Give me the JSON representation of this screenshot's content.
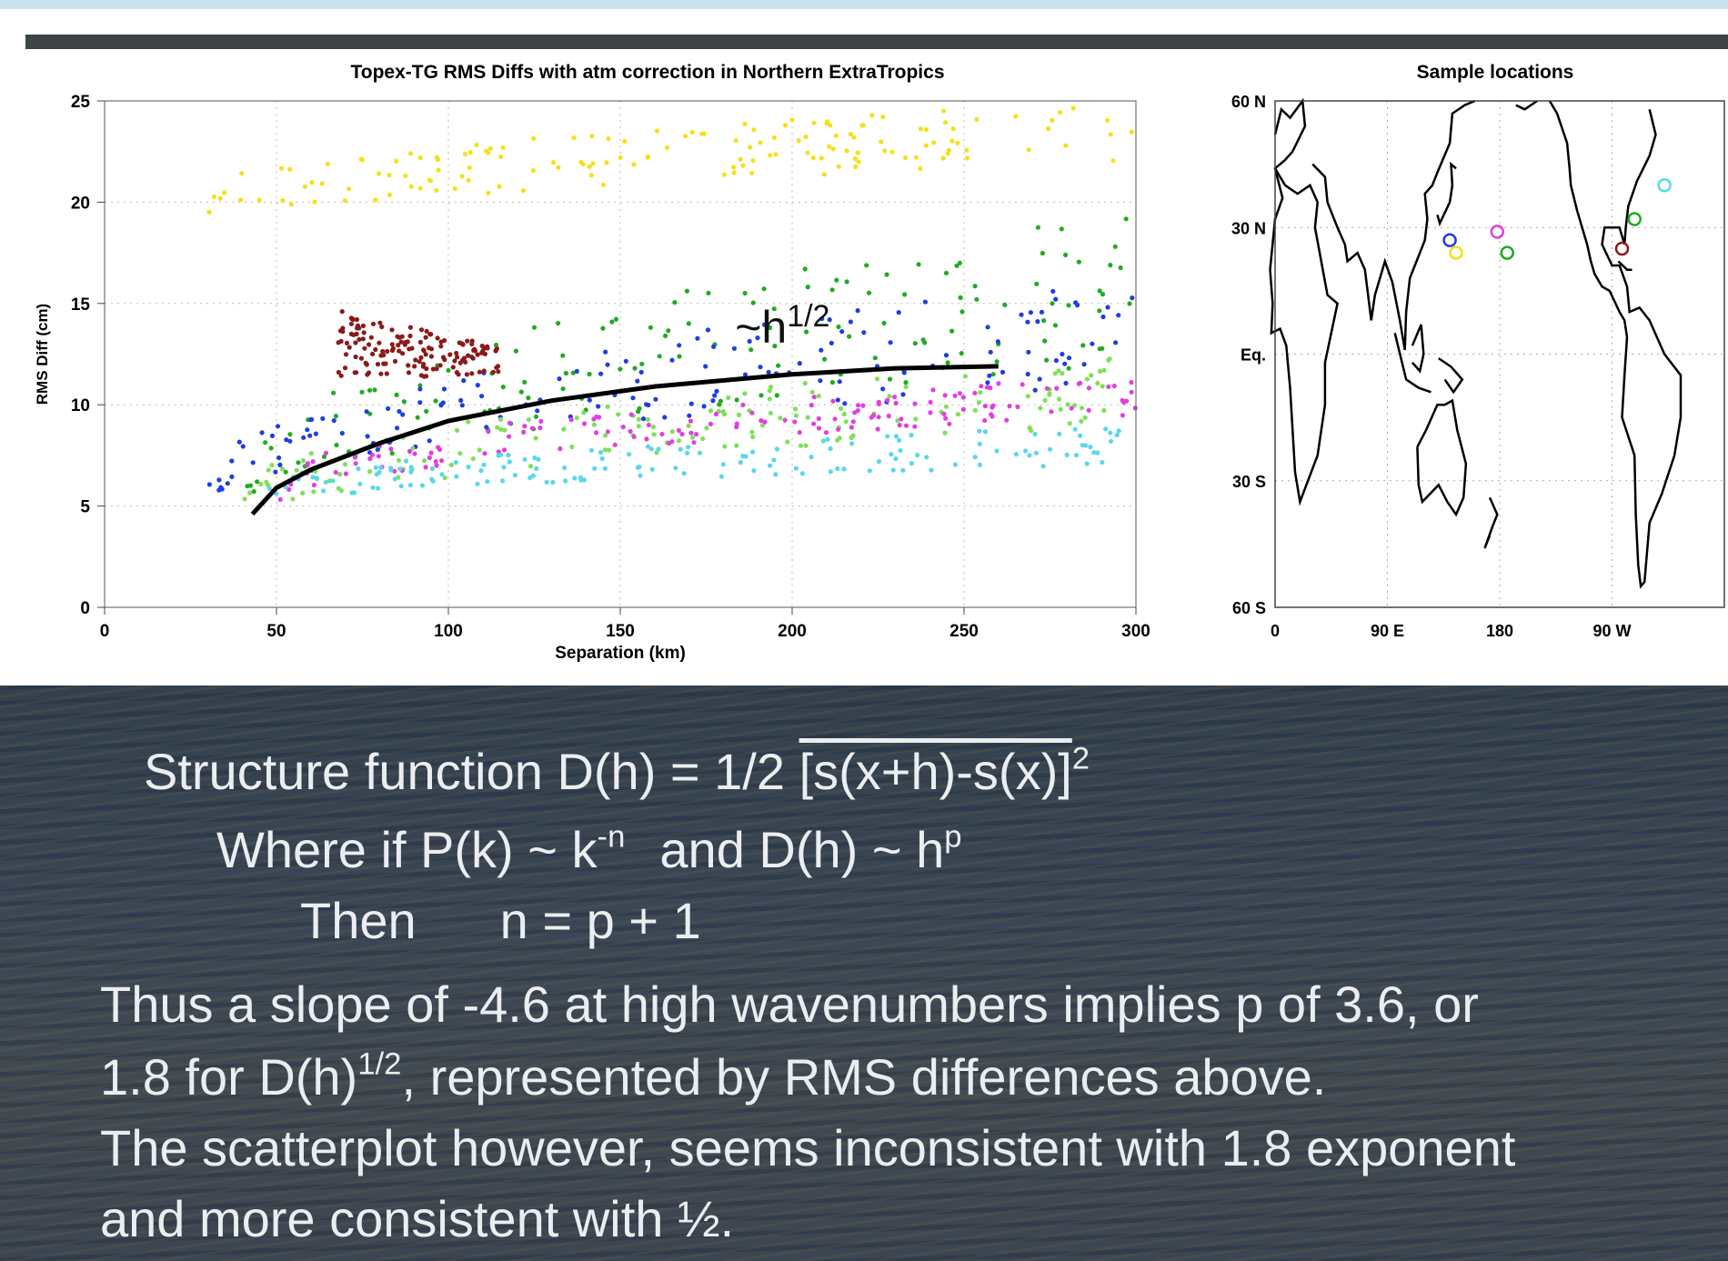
{
  "slide": {
    "line1": {
      "prefix": "Structure function D(h) = 1/2 ",
      "overline": "[s(x+h)-s(x)]",
      "sup": "2"
    },
    "line2": {
      "a": "Where if P(k) ~ k",
      "a_sup": "-n",
      "b": "and D(h) ~ h",
      "b_sup": "p"
    },
    "line3": {
      "a": "Then",
      "b": "n = p + 1"
    },
    "line4": "Thus a slope of -4.6 at high wavenumbers implies p of 3.6, or",
    "line5": {
      "a": "1.8 for D(h)",
      "sup": "1/2",
      "b": ", represented by RMS differences above."
    },
    "line6": "The scatterplot however, seems inconsistent with 1.8 exponent",
    "line7": "and more consistent with ½."
  },
  "colors": {
    "yellow": "#f2e21a",
    "green": "#22aa22",
    "lightgreen": "#7ee05a",
    "blue": "#1f3ee0",
    "magenta": "#e040e0",
    "cyan": "#5ad8e8",
    "darkred": "#8a1a1a",
    "fit": "#000000",
    "map_land": "#000000"
  },
  "chart_data": [
    {
      "type": "scatter",
      "title": "Topex-TG RMS Diffs with atm correction in Northern ExtraTropics",
      "xlabel": "Separation (km)",
      "ylabel": "RMS Diff (cm)",
      "xlim": [
        0,
        300
      ],
      "ylim": [
        0,
        25
      ],
      "xticks": [
        "0",
        "50",
        "100",
        "150",
        "200",
        "250",
        "300"
      ],
      "yticks": [
        "0",
        "5",
        "10",
        "15",
        "20",
        "25"
      ],
      "grid": true,
      "annotation": {
        "text": "~h",
        "sup": "1/2",
        "x": 190,
        "y": 13.5
      },
      "fit_curve": {
        "name": "~h1/2",
        "x": [
          43,
          50,
          60,
          80,
          100,
          130,
          160,
          200,
          230,
          260
        ],
        "y": [
          4.6,
          5.9,
          6.8,
          8.1,
          9.2,
          10.2,
          10.9,
          11.5,
          11.8,
          11.9
        ]
      },
      "series": [
        {
          "color": "yellow",
          "x_range": [
            28,
            300
          ],
          "y_start": [
            18.5,
            20.5
          ],
          "y_end": [
            22,
            25
          ]
        },
        {
          "color": "green",
          "x_range": [
            40,
            300
          ],
          "y_start": [
            4.5,
            6.5
          ],
          "y_end": [
            12,
            19.5
          ]
        },
        {
          "color": "blue",
          "x_range": [
            30,
            300
          ],
          "y_start": [
            5,
            6.5
          ],
          "y_end": [
            11,
            16.5
          ]
        },
        {
          "color": "lightgreen",
          "x_range": [
            40,
            300
          ],
          "y_start": [
            4,
            6
          ],
          "y_end": [
            9,
            12.5
          ]
        },
        {
          "color": "magenta",
          "x_range": [
            50,
            300
          ],
          "y_start": [
            5,
            6.5
          ],
          "y_end": [
            9.5,
            11.5
          ]
        },
        {
          "color": "cyan",
          "x_range": [
            45,
            300
          ],
          "y_start": [
            5,
            6
          ],
          "y_end": [
            7,
            9
          ]
        },
        {
          "color": "darkred",
          "x_range": [
            68,
            115
          ],
          "y_start": [
            11,
            15.5
          ],
          "y_end": [
            11.5,
            13
          ]
        }
      ]
    },
    {
      "type": "map",
      "title": "Sample locations",
      "yticks": [
        "60 N",
        "30 N",
        "Eq.",
        "30 S",
        "60 S"
      ],
      "xticks": [
        "0",
        "90 E",
        "180",
        "90 W"
      ],
      "markers": [
        {
          "color": "blue",
          "lon": 140,
          "lat": 27
        },
        {
          "color": "yellow",
          "lon": 145,
          "lat": 24
        },
        {
          "color": "magenta",
          "lon": 178,
          "lat": 29
        },
        {
          "color": "green",
          "lon": 186,
          "lat": 24
        },
        {
          "color": "darkred",
          "lon": 278,
          "lat": 25
        },
        {
          "color": "green",
          "lon": 288,
          "lat": 32
        },
        {
          "color": "cyan",
          "lon": 312,
          "lat": 40
        }
      ]
    }
  ]
}
